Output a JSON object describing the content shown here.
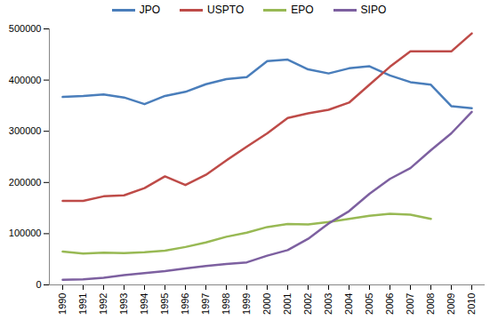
{
  "chart_data": {
    "type": "line",
    "categories": [
      "1990",
      "1991",
      "1992",
      "1993",
      "1994",
      "1995",
      "1996",
      "1997",
      "1998",
      "1999",
      "2000",
      "2001",
      "2002",
      "2003",
      "2004",
      "2005",
      "2006",
      "2007",
      "2008",
      "2009",
      "2010"
    ],
    "series": [
      {
        "name": "JPO",
        "color": "#4a7ebb",
        "values": [
          367000,
          369000,
          372000,
          366000,
          353000,
          369000,
          377000,
          392000,
          402000,
          406000,
          437000,
          440000,
          421000,
          413000,
          423000,
          427000,
          409000,
          396000,
          391000,
          349000,
          345000
        ]
      },
      {
        "name": "USPTO",
        "color": "#be4b48",
        "values": [
          164000,
          164000,
          173000,
          175000,
          189000,
          212000,
          195000,
          215000,
          243000,
          270000,
          296000,
          326000,
          335000,
          342000,
          356000,
          391000,
          426000,
          456000,
          456000,
          456000,
          491000
        ]
      },
      {
        "name": "EPO",
        "color": "#98b954",
        "values": [
          65000,
          61000,
          63000,
          62000,
          64000,
          67000,
          74000,
          83000,
          94000,
          102000,
          113000,
          119000,
          118000,
          123000,
          129000,
          135000,
          139000,
          137000,
          129000,
          null,
          null
        ]
      },
      {
        "name": "SIPO",
        "color": "#7d60a0",
        "values": [
          10000,
          11000,
          14000,
          19000,
          23000,
          27000,
          32000,
          37000,
          41000,
          44000,
          57000,
          68000,
          90000,
          120000,
          144000,
          178000,
          207000,
          228000,
          263000,
          296000,
          338000
        ]
      }
    ],
    "ylim": [
      0,
      500000
    ],
    "yticks": [
      0,
      100000,
      200000,
      300000,
      400000,
      500000
    ],
    "grid": false,
    "legend": "top"
  }
}
